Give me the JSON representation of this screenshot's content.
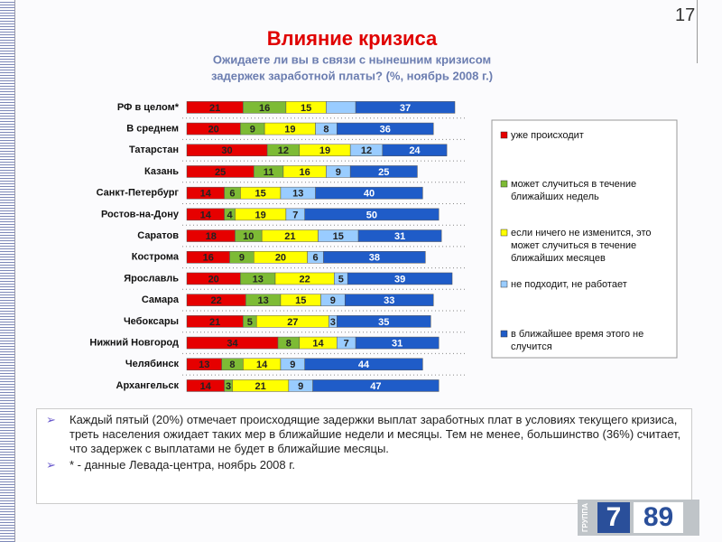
{
  "page_number": "17",
  "chart_data": {
    "type": "stacked-bar-horizontal",
    "title": "Влияние кризиса",
    "subtitle": [
      "Ожидаете ли вы в связи с нынешним кризисом",
      "задержек заработной платы? (%,  ноябрь  2008 г.)"
    ],
    "categories": [
      "РФ в целом*",
      "В среднем",
      "Татарстан",
      "Казань",
      "Санкт-Петербург",
      "Ростов-на-Дону",
      "Саратов",
      "Кострома",
      "Ярославль",
      "Самара",
      "Чебоксары",
      "Нижний Новгород",
      "Челябинск",
      "Архангельск"
    ],
    "xlim": [
      0,
      100
    ],
    "series": [
      {
        "name": "уже происходит",
        "color": "#e60000",
        "values": [
          21,
          20,
          30,
          25,
          14,
          14,
          18,
          16,
          20,
          22,
          21,
          34,
          13,
          14
        ]
      },
      {
        "name": "может случиться в течение ближайших недель",
        "color": "#7dbb35",
        "values": [
          16,
          9,
          12,
          11,
          6,
          4,
          10,
          9,
          13,
          13,
          5,
          8,
          8,
          3
        ]
      },
      {
        "name": "если ничего не изменится, это может случиться в течение ближайших месяцев",
        "color": "#ffff00",
        "values": [
          15,
          19,
          19,
          16,
          15,
          19,
          21,
          20,
          22,
          15,
          27,
          14,
          14,
          21
        ]
      },
      {
        "name": "не подходит, не работает",
        "color": "#99ccff",
        "values": [
          11,
          8,
          12,
          9,
          13,
          7,
          15,
          6,
          5,
          9,
          3,
          7,
          9,
          9
        ],
        "value_labels": [
          null,
          "8",
          "12",
          "9",
          "13",
          "7",
          "15",
          "6",
          "5",
          "9",
          "3",
          "7",
          "9",
          "9"
        ]
      },
      {
        "name": "в ближайшее время этого не случится",
        "color": "#1f5cc8",
        "values": [
          37,
          36,
          24,
          25,
          40,
          50,
          31,
          38,
          39,
          33,
          35,
          31,
          44,
          47
        ]
      }
    ]
  },
  "bullets": [
    "Каждый пятый (20%) отмечает происходящие задержки выплат заработных плат в условиях текущего кризиса, треть населения ожидает таких мер в ближайшие недели и месяцы. Тем не менее, большинство (36%) считает, что задержек с выплатами не будет в ближайшие месяцы.",
    "* - данные Левада-центра, ноябрь 2008 г."
  ],
  "logo": [
    "ГРУППА",
    "7",
    "89"
  ]
}
